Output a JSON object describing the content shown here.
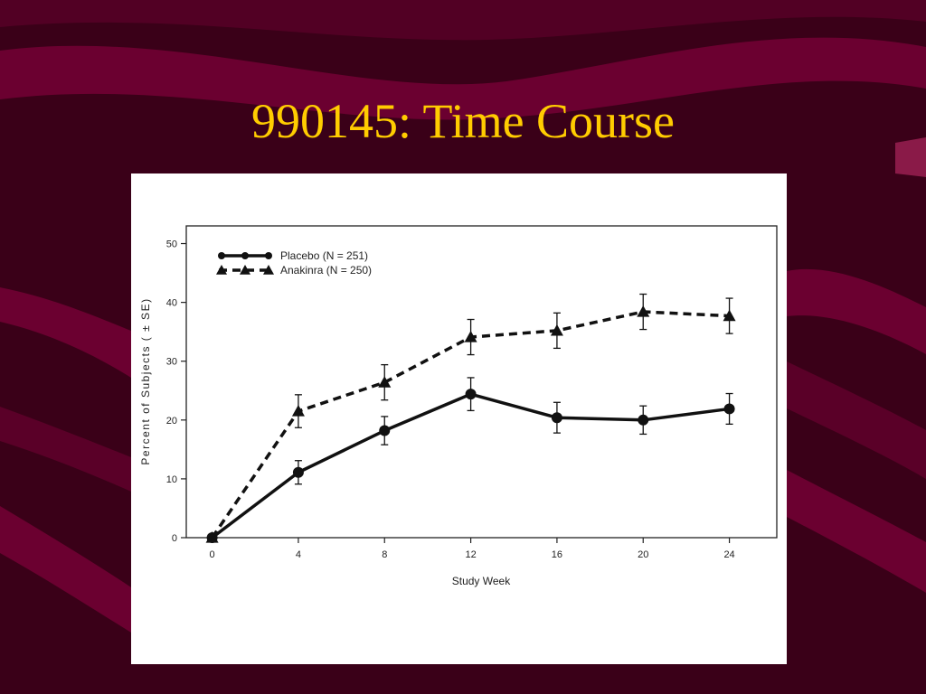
{
  "slide": {
    "title": "990145: Time Course",
    "colors": {
      "background": "#3a0018",
      "title": "#ffcc00",
      "accent": "#6b0030"
    }
  },
  "chart_data": {
    "type": "line",
    "title": "",
    "xlabel": "Study Week",
    "ylabel": "Percent of Subjects ( ± SE)",
    "x": [
      0,
      4,
      8,
      12,
      16,
      20,
      24
    ],
    "xticks": [
      "0",
      "4",
      "8",
      "12",
      "16",
      "20",
      "24"
    ],
    "yticks": [
      "0",
      "10",
      "20",
      "30",
      "40",
      "50"
    ],
    "ylim": [
      0,
      53
    ],
    "xlim": [
      -1.2,
      26.2
    ],
    "grid": false,
    "legend_position": "top-left",
    "series": [
      {
        "name": "Placebo (N = 251)",
        "marker": "circle",
        "line": "solid",
        "values": [
          0,
          11.1,
          18.2,
          24.4,
          20.4,
          20.0,
          21.9
        ],
        "se": [
          0,
          2.0,
          2.4,
          2.8,
          2.6,
          2.4,
          2.6
        ]
      },
      {
        "name": "Anakinra (N = 250)",
        "marker": "triangle",
        "line": "dashed",
        "values": [
          0,
          21.5,
          26.4,
          34.1,
          35.2,
          38.4,
          37.7
        ],
        "se": [
          0,
          2.8,
          3.0,
          3.0,
          3.0,
          3.0,
          3.0
        ]
      }
    ]
  }
}
